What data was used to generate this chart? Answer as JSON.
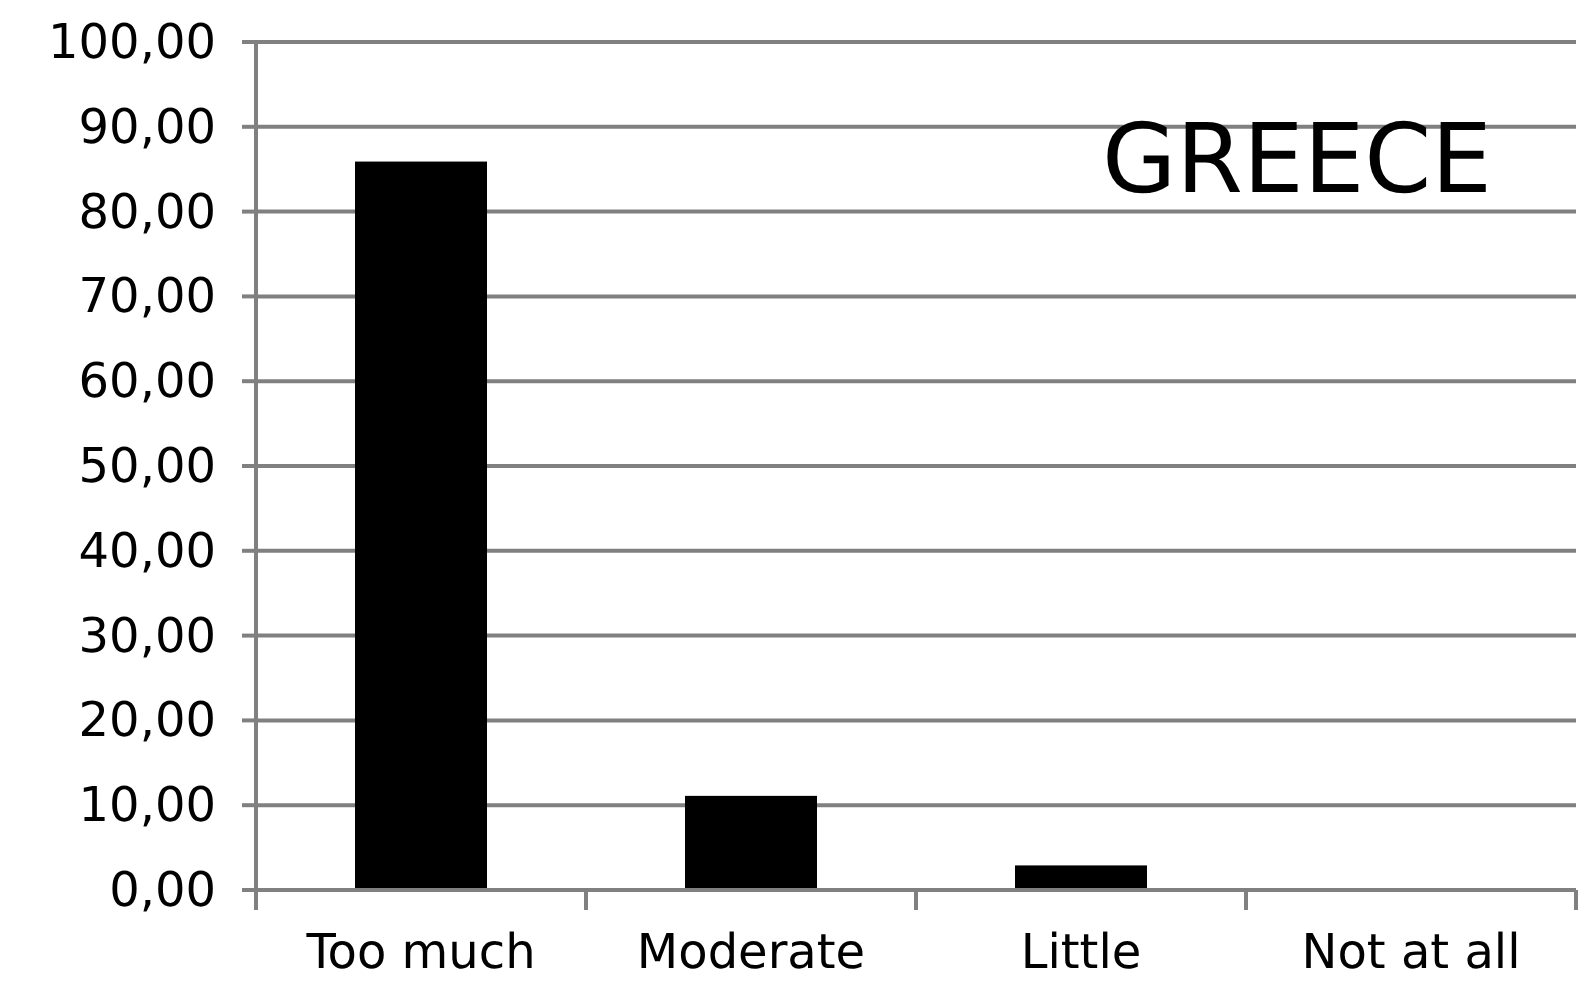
{
  "chart_data": {
    "type": "bar",
    "title": "GREECE",
    "categories": [
      "Too much",
      "Moderate",
      "Little",
      "Not at all"
    ],
    "values": [
      85.9,
      11.1,
      2.9,
      0
    ],
    "color": "#000000",
    "ylim": [
      0,
      100
    ],
    "yticks": [
      {
        "value": 0,
        "label": "0,00"
      },
      {
        "value": 10,
        "label": "10,00"
      },
      {
        "value": 20,
        "label": "20,00"
      },
      {
        "value": 30,
        "label": "30,00"
      },
      {
        "value": 40,
        "label": "40,00"
      },
      {
        "value": 50,
        "label": "50,00"
      },
      {
        "value": 60,
        "label": "60,00"
      },
      {
        "value": 70,
        "label": "70,00"
      },
      {
        "value": 80,
        "label": "80,00"
      },
      {
        "value": 90,
        "label": "90,00"
      },
      {
        "value": 100,
        "label": "100,00"
      }
    ],
    "grid": "y"
  }
}
